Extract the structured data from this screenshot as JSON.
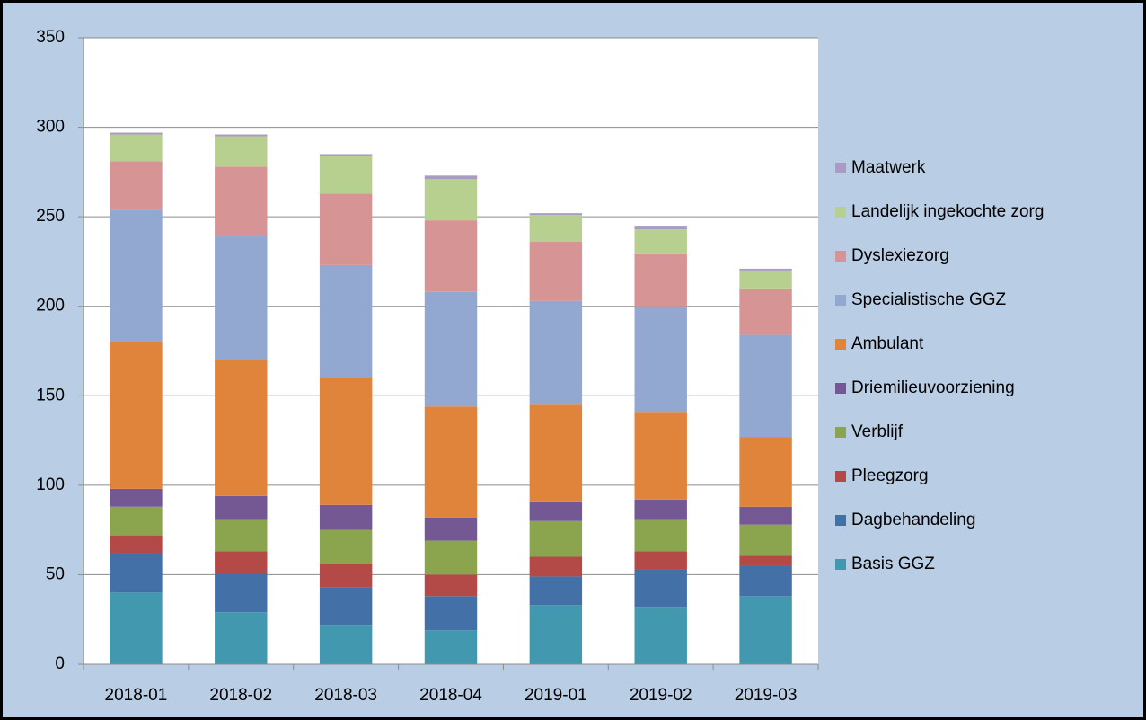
{
  "chart_data": {
    "type": "stacked_bar",
    "categories": [
      "2018-01",
      "2018-02",
      "2018-03",
      "2018-04",
      "2019-01",
      "2019-02",
      "2019-03"
    ],
    "series": [
      {
        "name": "Basis GGZ",
        "color": "#4198af",
        "values": [
          40,
          29,
          22,
          19,
          33,
          32,
          38
        ]
      },
      {
        "name": "Dagbehandeling",
        "color": "#4470a8",
        "values": [
          22,
          22,
          21,
          19,
          16,
          21,
          17
        ]
      },
      {
        "name": "Pleegzorg",
        "color": "#b34a47",
        "values": [
          10,
          12,
          13,
          12,
          11,
          10,
          6
        ]
      },
      {
        "name": "Verblijf",
        "color": "#8ba54f",
        "values": [
          16,
          18,
          19,
          19,
          20,
          18,
          17
        ]
      },
      {
        "name": "Driemilieuvoorziening",
        "color": "#735893",
        "values": [
          10,
          13,
          14,
          13,
          11,
          11,
          10
        ]
      },
      {
        "name": "Ambulant",
        "color": "#e0833b",
        "values": [
          82,
          76,
          71,
          62,
          54,
          49,
          39
        ]
      },
      {
        "name": "Specialistische GGZ",
        "color": "#93a8d1",
        "values": [
          74,
          69,
          63,
          64,
          58,
          59,
          57
        ]
      },
      {
        "name": "Dyslexiezorg",
        "color": "#d69594",
        "values": [
          27,
          39,
          40,
          40,
          33,
          29,
          26
        ]
      },
      {
        "name": "Landelijk ingekochte zorg",
        "color": "#b8d08f",
        "values": [
          15,
          17,
          21,
          23,
          15,
          14,
          10
        ]
      },
      {
        "name": "Maatwerk",
        "color": "#a99bc4",
        "values": [
          1,
          1,
          1,
          2,
          1,
          2,
          1
        ]
      }
    ],
    "ylim": [
      0,
      350
    ],
    "yticks": [
      0,
      50,
      100,
      150,
      200,
      250,
      300,
      350
    ],
    "grid": true,
    "legend": "right"
  }
}
